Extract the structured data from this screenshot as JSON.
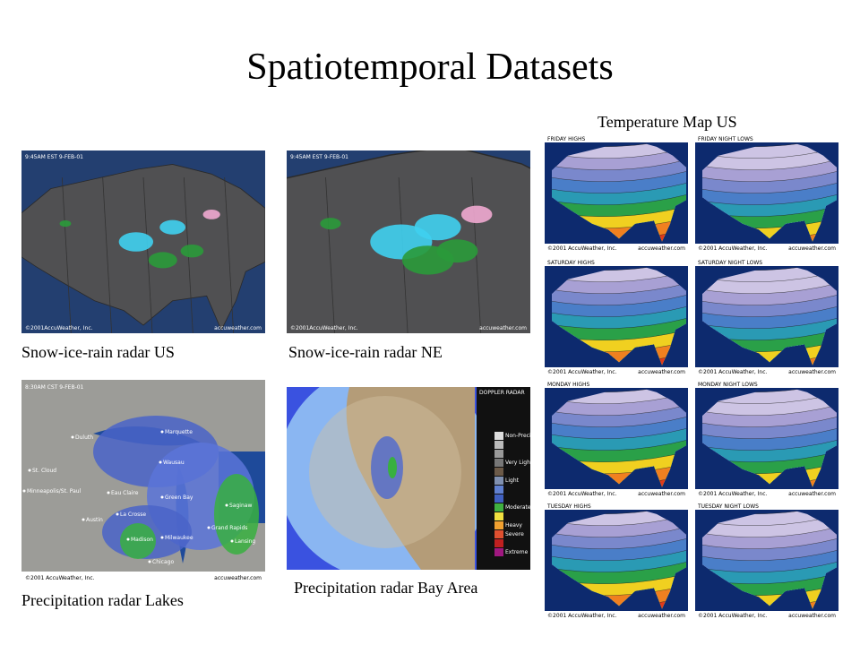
{
  "title": "Spatiotemporal Datasets",
  "radar_us": {
    "caption": "Snow-ice-rain radar US",
    "stamp": "9:45AM EST 9-FEB-01",
    "credit": "©2001AccuWeather, Inc.",
    "site": "accuweather.com"
  },
  "radar_ne": {
    "caption": "Snow-ice-rain radar NE",
    "stamp": "9:45AM EST 9-FEB-01",
    "credit": "©2001AccuWeather, Inc.",
    "site": "accuweather.com"
  },
  "lakes": {
    "caption": "Precipitation radar Lakes",
    "stamp": "8:30AM CST 9-FEB-01",
    "credit": "©2001 AccuWeather, Inc.",
    "site": "accuweather.com",
    "cities": [
      "Duluth",
      "Marquette",
      "St. Cloud",
      "Wausau",
      "Minneapolis/St. Paul",
      "Eau Claire",
      "Green Bay",
      "Austin",
      "La Crosse",
      "Saginaw",
      "Grand Rapids",
      "Milwaukee",
      "Madison",
      "Lansing",
      "Chicago"
    ]
  },
  "bay_area": {
    "caption": "Precipitation radar Bay Area",
    "header": "DOPPLER RADAR",
    "legend": [
      "Non-Precip",
      "Very Light",
      "Light",
      "Moderate",
      "Heavy",
      "Severe",
      "Extreme"
    ]
  },
  "temperature": {
    "caption": "Temperature Map US",
    "credit": "©2001 AccuWeather, Inc.",
    "site": "accuweather.com",
    "maps": [
      "FRIDAY HIGHS",
      "FRIDAY NIGHT LOWS",
      "SATURDAY HIGHS",
      "SATURDAY NIGHT LOWS",
      "MONDAY HIGHS",
      "MONDAY NIGHT LOWS",
      "TUESDAY HIGHS",
      "TUESDAY NIGHT LOWS"
    ]
  }
}
